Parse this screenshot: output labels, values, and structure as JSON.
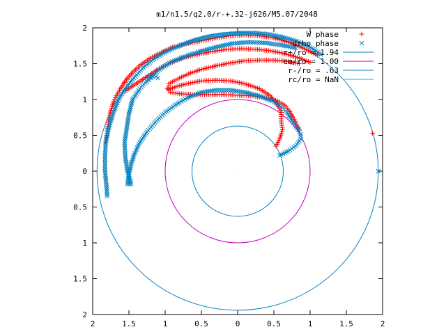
{
  "chart_data": {
    "type": "scatter",
    "title": "m1/n1.5/q2.0/r-+.32-j626/M5.07/2048",
    "xlabel": "",
    "ylabel": "",
    "xlim": [
      -2,
      2
    ],
    "ylim": [
      -2,
      2
    ],
    "x_ticks": [
      -2,
      -1.5,
      -1,
      -0.5,
      0,
      0.5,
      1,
      1.5,
      2
    ],
    "y_ticks": [
      -2,
      -1.5,
      -1,
      -0.5,
      0,
      0.5,
      1,
      1.5,
      2
    ],
    "x_tick_labels": [
      "2",
      "1.5",
      "1",
      "0.5",
      "0",
      "0.5",
      "1",
      "1.5",
      "2"
    ],
    "y_tick_labels": [
      "2",
      "1.5",
      "1",
      "0.5",
      "0",
      "0.5",
      "1",
      "1.5",
      "2"
    ],
    "grid": false,
    "legend_position": "top-right",
    "series": [
      {
        "name": "W phase",
        "marker": "plus",
        "color": "#ff0000",
        "points": [
          [
            1.86,
            0.53
          ],
          [
            0.85,
            0.58
          ],
          [
            0.78,
            0.72
          ],
          [
            0.72,
            0.83
          ],
          [
            0.65,
            0.92
          ],
          [
            0.55,
            0.98
          ],
          [
            0.4,
            1.02
          ],
          [
            0.2,
            1.05
          ],
          [
            0.0,
            1.06
          ],
          [
            -0.2,
            1.07
          ],
          [
            -0.4,
            1.07
          ],
          [
            -0.6,
            1.07
          ],
          [
            -0.8,
            1.08
          ],
          [
            -0.93,
            1.1
          ],
          [
            -0.97,
            1.15
          ],
          [
            0.53,
            0.35
          ],
          [
            0.58,
            0.45
          ],
          [
            0.62,
            0.58
          ],
          [
            0.6,
            0.7
          ],
          [
            0.6,
            0.82
          ],
          [
            0.55,
            0.93
          ],
          [
            0.45,
            1.05
          ],
          [
            0.3,
            1.15
          ],
          [
            0.1,
            1.22
          ],
          [
            -0.1,
            1.26
          ],
          [
            -0.3,
            1.27
          ],
          [
            -0.5,
            1.26
          ],
          [
            -0.7,
            1.22
          ],
          [
            -0.85,
            1.18
          ],
          [
            -0.95,
            1.14
          ],
          [
            -0.95,
            1.22
          ],
          [
            -0.8,
            1.3
          ],
          [
            -0.65,
            1.37
          ],
          [
            -0.5,
            1.42
          ],
          [
            -0.3,
            1.47
          ],
          [
            -0.1,
            1.51
          ],
          [
            0.1,
            1.54
          ],
          [
            0.3,
            1.55
          ],
          [
            0.5,
            1.55
          ],
          [
            0.7,
            1.53
          ],
          [
            0.85,
            1.5
          ],
          [
            -1.55,
            1.12
          ],
          [
            -1.4,
            1.22
          ],
          [
            -1.25,
            1.32
          ],
          [
            -1.1,
            1.42
          ],
          [
            -0.95,
            1.5
          ],
          [
            -0.75,
            1.58
          ],
          [
            -0.55,
            1.63
          ],
          [
            -0.35,
            1.67
          ],
          [
            -0.15,
            1.7
          ],
          [
            0.05,
            1.71
          ],
          [
            0.25,
            1.7
          ],
          [
            0.45,
            1.68
          ],
          [
            0.65,
            1.64
          ],
          [
            0.85,
            1.58
          ],
          [
            1.0,
            1.52
          ],
          [
            -1.82,
            0.4
          ],
          [
            -1.8,
            0.55
          ],
          [
            -1.78,
            0.7
          ],
          [
            -1.75,
            0.85
          ],
          [
            -1.7,
            1.0
          ],
          [
            -1.63,
            1.13
          ],
          [
            -1.55,
            1.26
          ],
          [
            -1.45,
            1.38
          ],
          [
            -1.33,
            1.49
          ],
          [
            -1.2,
            1.58
          ],
          [
            -1.05,
            1.66
          ],
          [
            -0.9,
            1.73
          ],
          [
            -0.7,
            1.78
          ],
          [
            -0.5,
            1.82
          ],
          [
            -0.3,
            1.86
          ],
          [
            -0.1,
            1.89
          ],
          [
            0.1,
            1.9
          ],
          [
            0.3,
            1.89
          ],
          [
            0.5,
            1.86
          ],
          [
            0.7,
            1.8
          ],
          [
            0.9,
            1.72
          ],
          [
            1.1,
            1.62
          ]
        ]
      },
      {
        "name": "drho phase",
        "marker": "cross",
        "color": "#0080c0",
        "points": [
          [
            1.94,
            0.0
          ],
          [
            0.58,
            0.22
          ],
          [
            0.7,
            0.28
          ],
          [
            0.8,
            0.35
          ],
          [
            0.87,
            0.45
          ],
          [
            0.87,
            0.52
          ],
          [
            0.82,
            0.6
          ],
          [
            0.75,
            0.7
          ],
          [
            0.68,
            0.82
          ],
          [
            0.6,
            0.9
          ],
          [
            0.48,
            0.98
          ],
          [
            0.3,
            1.05
          ],
          [
            0.1,
            1.1
          ],
          [
            -0.1,
            1.13
          ],
          [
            -0.3,
            1.13
          ],
          [
            -0.5,
            1.1
          ],
          [
            -0.7,
            1.02
          ],
          [
            -0.85,
            0.93
          ],
          [
            -1.0,
            0.82
          ],
          [
            -1.12,
            0.7
          ],
          [
            -1.25,
            0.55
          ],
          [
            -1.35,
            0.4
          ],
          [
            -1.42,
            0.25
          ],
          [
            -1.47,
            0.1
          ],
          [
            -1.5,
            -0.05
          ],
          [
            -1.52,
            -0.18
          ],
          [
            -1.47,
            -0.18
          ],
          [
            -1.52,
            0.0
          ],
          [
            -1.55,
            0.2
          ],
          [
            -1.56,
            0.4
          ],
          [
            -1.53,
            0.6
          ],
          [
            -1.5,
            0.8
          ],
          [
            -1.45,
            1.0
          ],
          [
            -1.35,
            1.15
          ],
          [
            -1.22,
            1.3
          ],
          [
            -1.08,
            1.42
          ],
          [
            -0.92,
            1.52
          ],
          [
            -0.73,
            1.6
          ],
          [
            -0.52,
            1.67
          ],
          [
            -0.3,
            1.73
          ],
          [
            -0.08,
            1.78
          ],
          [
            0.15,
            1.8
          ],
          [
            0.38,
            1.79
          ],
          [
            0.6,
            1.76
          ],
          [
            0.8,
            1.72
          ],
          [
            -1.8,
            -0.35
          ],
          [
            -1.81,
            -0.2
          ],
          [
            -1.83,
            0.0
          ],
          [
            -1.83,
            0.2
          ],
          [
            -1.82,
            0.4
          ],
          [
            -1.78,
            0.6
          ],
          [
            -1.72,
            0.8
          ],
          [
            -1.65,
            0.98
          ],
          [
            -1.55,
            1.15
          ],
          [
            -1.43,
            1.3
          ],
          [
            -1.3,
            1.45
          ],
          [
            -1.15,
            1.57
          ],
          [
            -0.98,
            1.67
          ],
          [
            -0.78,
            1.76
          ],
          [
            -0.58,
            1.83
          ],
          [
            -0.38,
            1.88
          ],
          [
            -0.18,
            1.91
          ],
          [
            0.02,
            1.93
          ],
          [
            0.22,
            1.93
          ],
          [
            0.42,
            1.91
          ],
          [
            0.62,
            1.87
          ],
          [
            0.82,
            1.81
          ],
          [
            1.0,
            1.73
          ],
          [
            1.15,
            1.63
          ],
          [
            -1.25,
            1.25
          ],
          [
            -1.2,
            1.3
          ],
          [
            -1.15,
            1.34
          ],
          [
            -1.1,
            1.3
          ]
        ]
      },
      {
        "name": "r+/ro = 1.94",
        "type": "circle",
        "radius": 1.94,
        "color": "#0080c0"
      },
      {
        "name": "co/ro = 1.00",
        "type": "circle",
        "radius": 1.0,
        "color": "#c000c0"
      },
      {
        "name": "r-/ro = .63",
        "type": "circle",
        "radius": 0.63,
        "color": "#0080c0"
      },
      {
        "name": "rc/ro = NaN",
        "type": "circle",
        "radius": null,
        "color": "#00c0c0"
      }
    ]
  }
}
